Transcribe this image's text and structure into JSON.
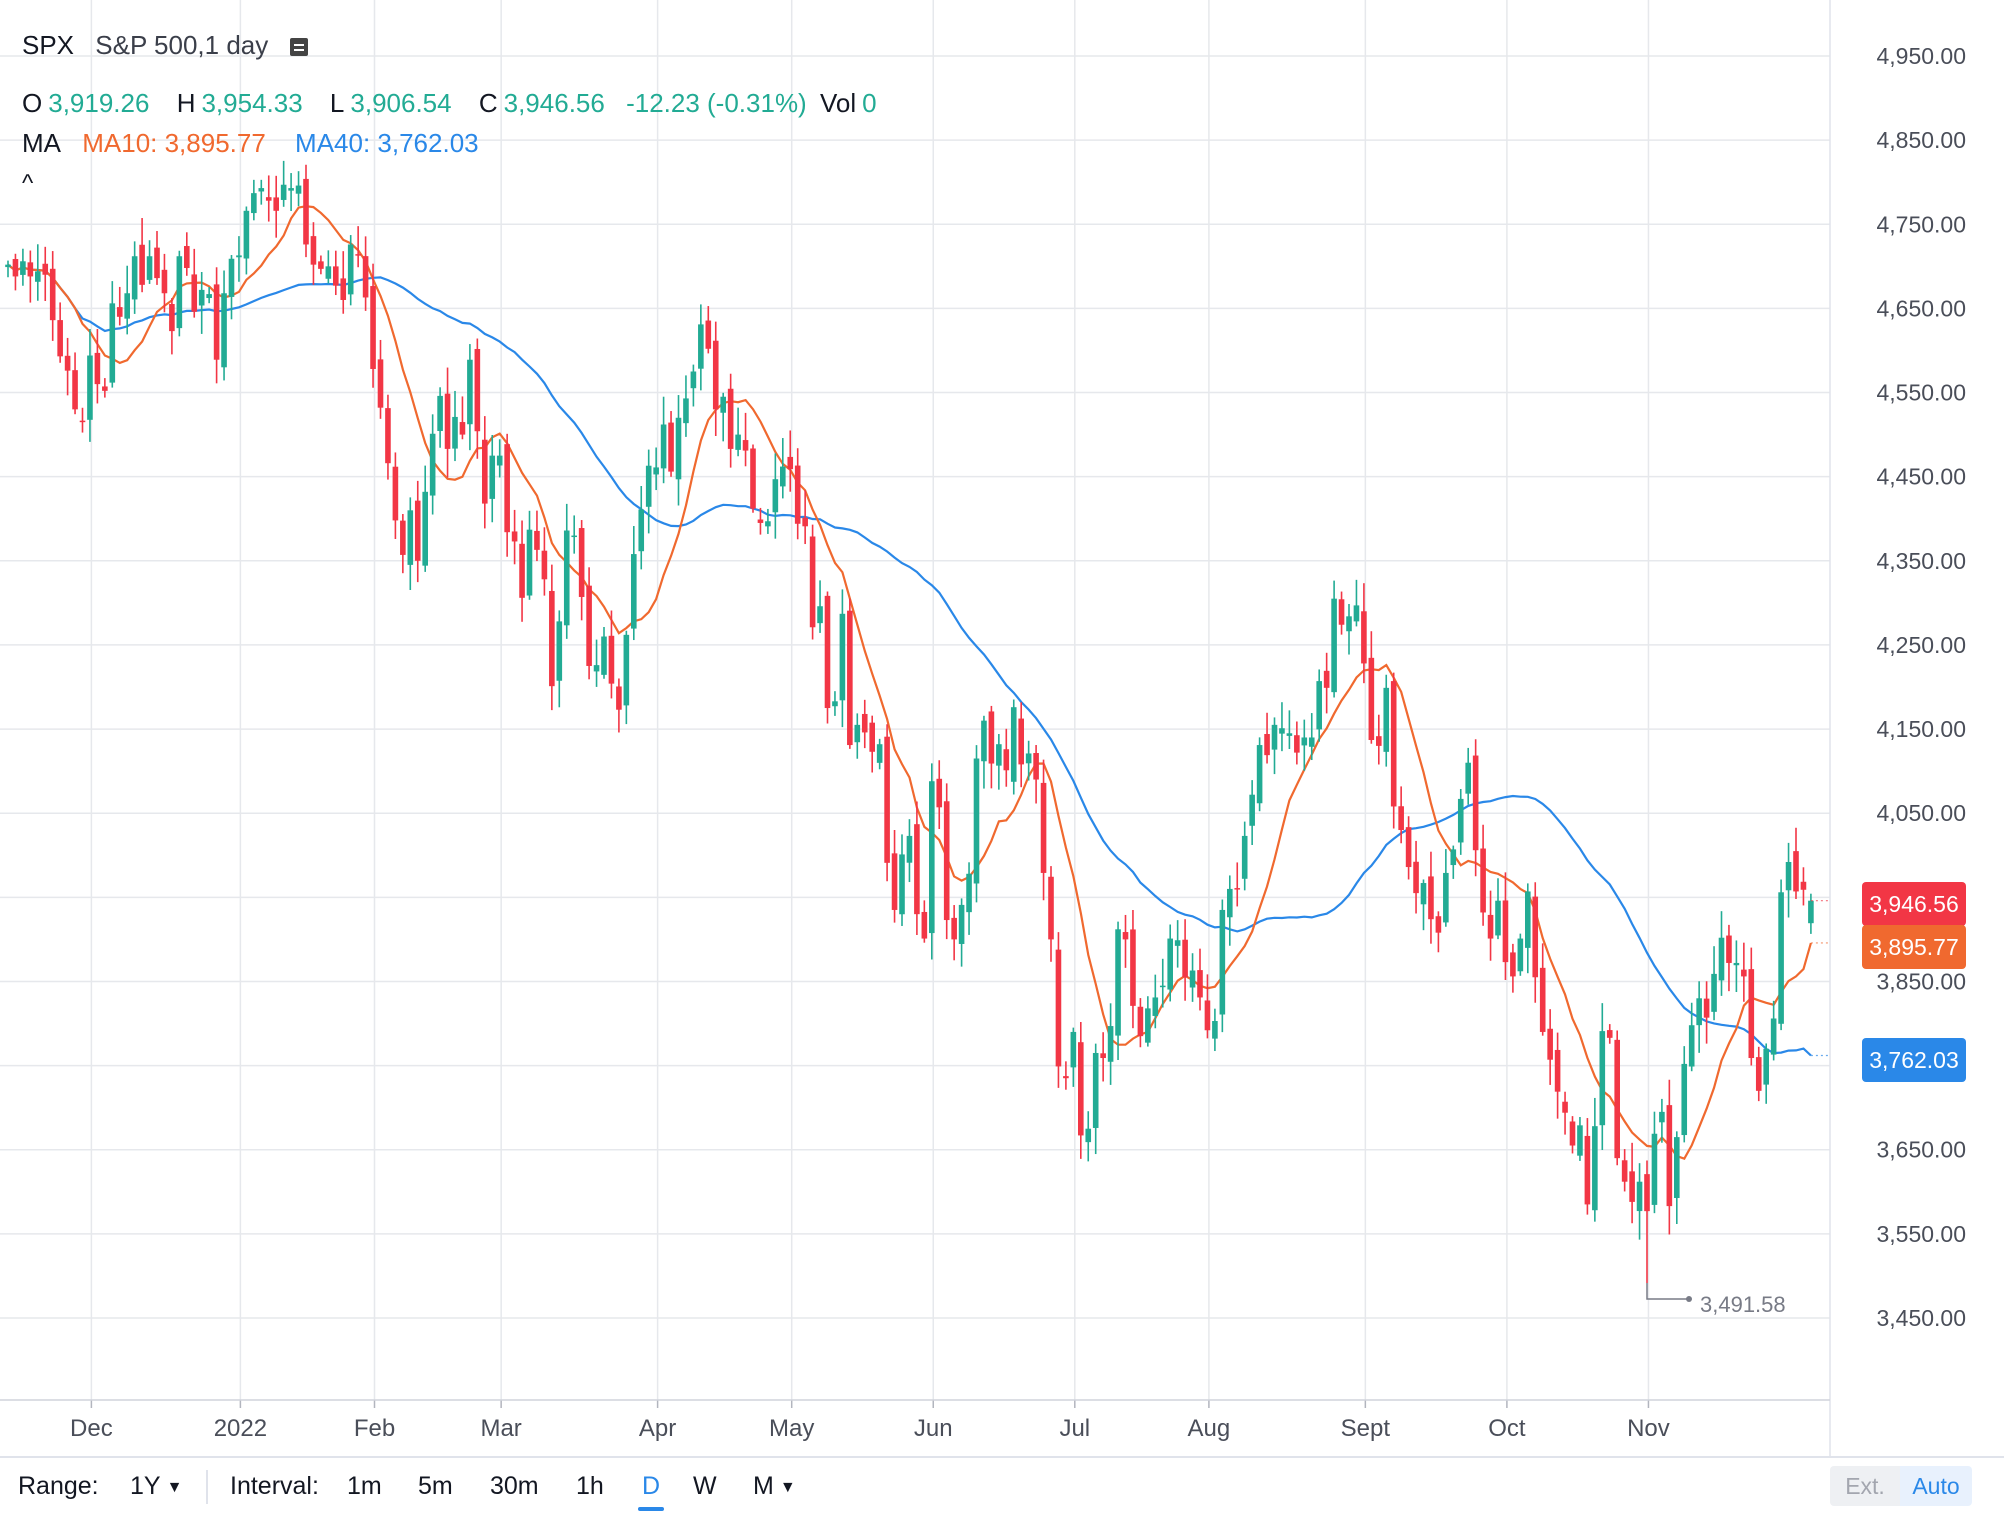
{
  "header": {
    "symbol": "SPX",
    "description": "S&P 500,1 day",
    "ohlc": {
      "o_label": "O",
      "o_value": "3,919.26",
      "h_label": "H",
      "h_value": "3,954.33",
      "l_label": "L",
      "l_value": "3,906.54",
      "c_label": "C",
      "c_value": "3,946.56",
      "change": "-12.23 (-0.31%)",
      "vol_label": "Vol",
      "vol_value": "0"
    },
    "ma_label": "MA",
    "ma10": "MA10: 3,895.77",
    "ma40": "MA40: 3,762.03",
    "collapse_glyph": "^"
  },
  "price_tags": {
    "last": "3,946.56",
    "ma10": "3,895.77",
    "ma40": "3,762.03"
  },
  "low_annotation": "3,491.58",
  "toolbar": {
    "range_label": "Range:",
    "range_value": "1Y",
    "interval_label": "Interval:",
    "intervals": [
      "1m",
      "5m",
      "30m",
      "1h",
      "D",
      "W",
      "M"
    ],
    "active_interval": "D",
    "ext": "Ext.",
    "auto": "Auto"
  },
  "colors": {
    "up": "#22ab94",
    "down": "#f23645",
    "ma10": "#f0692f",
    "ma40": "#2a88e8",
    "grid": "#e6e8ec"
  },
  "chart_data": {
    "type": "candlestick",
    "y_ticks": [
      "4,950.00",
      "4,850.00",
      "4,750.00",
      "4,650.00",
      "4,550.00",
      "4,450.00",
      "4,350.00",
      "4,250.00",
      "4,150.00",
      "4,050.00",
      "3,950.00",
      "3,850.00",
      "3,750.00",
      "3,650.00",
      "3,550.00",
      "3,450.00"
    ],
    "y_tick_values": [
      4950,
      4850,
      4750,
      4650,
      4550,
      4450,
      4350,
      4250,
      4150,
      4050,
      3950,
      3850,
      3750,
      3650,
      3550,
      3450
    ],
    "ylim": [
      3450,
      4950
    ],
    "x_ticks": [
      "Dec",
      "2022",
      "Feb",
      "Mar",
      "Apr",
      "May",
      "Jun",
      "Jul",
      "Aug",
      "Sept",
      "Oct",
      "Nov"
    ],
    "x_tick_index": [
      12,
      32,
      50,
      67,
      88,
      106,
      125,
      144,
      162,
      183,
      202,
      221
    ],
    "closes": [
      4702,
      4688,
      4706,
      4688,
      4694,
      4690,
      4636,
      4593,
      4576,
      4530,
      4515,
      4594,
      4560,
      4552,
      4656,
      4640,
      4668,
      4712,
      4678,
      4712,
      4686,
      4668,
      4623,
      4712,
      4698,
      4646,
      4672,
      4667,
      4589,
      4668,
      4709,
      4713,
      4766,
      4787,
      4793,
      4778,
      4766,
      4797,
      4793,
      4796,
      4726,
      4702,
      4697,
      4700,
      4677,
      4660,
      4726,
      4714,
      4663,
      4578,
      4532,
      4466,
      4398,
      4357,
      4410,
      4350,
      4432,
      4501,
      4546,
      4483,
      4521,
      4500,
      4589,
      4504,
      4418,
      4475,
      4475,
      4384,
      4373,
      4306,
      4387,
      4363,
      4328,
      4201,
      4278,
      4386,
      4380,
      4307,
      4225,
      4226,
      4260,
      4204,
      4173,
      4262,
      4358,
      4411,
      4463,
      4461,
      4512,
      4456,
      4520,
      4543,
      4575,
      4631,
      4602,
      4530,
      4545,
      4483,
      4500,
      4481,
      4412,
      4395,
      4397,
      4447,
      4462,
      4459,
      4394,
      4391,
      4271,
      4296,
      4175,
      4183,
      4287,
      4131,
      4155,
      4146,
      4123,
      4132,
      3991,
      3935,
      4001,
      4023,
      3930,
      3901,
      4088,
      4057,
      3923,
      3900,
      3941,
      3978,
      4115,
      4160,
      4109,
      4132,
      4101,
      4176,
      4108,
      4121,
      4090,
      3979,
      3900,
      3749,
      3735,
      3790,
      3667,
      3675,
      3765,
      3759,
      3797,
      3912,
      3900,
      3821,
      3785,
      3818,
      3831,
      3845,
      3901,
      3899,
      3855,
      3863,
      3831,
      3792,
      3803,
      3935,
      3960,
      3961,
      4023,
      4072,
      4131,
      4119,
      4155,
      4151,
      4145,
      4122,
      4140,
      4140,
      4207,
      4199,
      4305,
      4274,
      4284,
      4297,
      4228,
      4137,
      4130,
      4199,
      4058,
      4030,
      3986,
      3955,
      3967,
      3924,
      3908,
      3979,
      4007,
      4067,
      4110,
      4006,
      3932,
      3901,
      3946,
      3873,
      3856,
      3901,
      3957,
      3855,
      3790,
      3757,
      3719,
      3694,
      3655,
      3679,
      3585,
      3678,
      3791,
      3783,
      3640,
      3612,
      3588,
      3612,
      3577,
      3669,
      3695,
      3583,
      3665,
      3752,
      3798,
      3830,
      3807,
      3859,
      3902,
      3872,
      3872,
      3856,
      3759,
      3720,
      3770,
      3806,
      3956,
      3992,
      3957,
      3959,
      3946
    ],
    "ma10_last": 3895.77,
    "ma40_last": 3762.03,
    "low_value": 3491.58
  }
}
